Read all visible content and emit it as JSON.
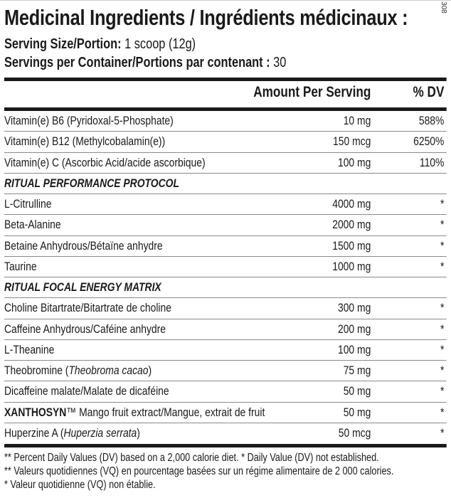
{
  "title": "Medicinal Ingredients / Ingrédients médicinaux :",
  "code": "308",
  "serving_size": {
    "label": "Serving Size/Portion:",
    "value": "1 scoop (12g)"
  },
  "servings_per_container": {
    "label": "Servings per Container/Portions par contenant :",
    "value": "30"
  },
  "header": {
    "amount": "Amount Per Serving",
    "dv": "% DV"
  },
  "rows": [
    {
      "name": "Vitamin(e) B6 (Pyridoxal-5-Phosphate)",
      "amount": "10 mg",
      "dv": "588%"
    },
    {
      "name": "Vitamin(e) B12 (Methylcobalamin(e))",
      "amount": "150 mcg",
      "dv": "6250%"
    },
    {
      "name": "Vitamin(e) C (Ascorbic Acid/acide ascorbique)",
      "amount": "100 mg",
      "dv": "110%"
    },
    {
      "section": "RITUAL PERFORMANCE PROTOCOL"
    },
    {
      "name": "L-Citrulline",
      "amount": "4000 mg",
      "dv": "*"
    },
    {
      "name": "Beta-Alanine",
      "amount": "2000 mg",
      "dv": "*"
    },
    {
      "name": "Betaine Anhydrous/Bétaïne anhydre",
      "amount": "1500 mg",
      "dv": "*"
    },
    {
      "name": "Taurine",
      "amount": "1000 mg",
      "dv": "*"
    },
    {
      "section": "RITUAL FOCAL ENERGY MATRIX"
    },
    {
      "name": "Choline Bitartrate/Bitartrate de choline",
      "amount": "300 mg",
      "dv": "*"
    },
    {
      "name": "Caffeine Anhydrous/Caféine anhydre",
      "amount": "200 mg",
      "dv": "*"
    },
    {
      "name": "L-Theanine",
      "amount": "100 mg",
      "dv": "*"
    },
    {
      "name": "Theobromine (",
      "italic": "Theobroma cacao",
      "name_end": ")",
      "amount": "75 mg",
      "dv": "*"
    },
    {
      "name": "Dicaffeine malate/Malate de dicaféine",
      "amount": "50 mg",
      "dv": "*"
    },
    {
      "bold": "XANTHOSYN",
      "name": "™ Mango fruit extract/Mangue, extrait de fruit",
      "amount": "50 mg",
      "dv": "*"
    },
    {
      "name": "Huperzine A (",
      "italic": "Huperzia serrata",
      "name_end": ")",
      "amount": "50 mcg",
      "dv": "*"
    }
  ],
  "footnotes": [
    "** Percent Daily Values (DV) based on a 2,000 calorie diet. * Daily Value (DV) not established.",
    "** Valeurs quotidiennes (VQ) en pourcentage basées sur un régime alimentaire de 2 000 calories.",
    "* Valeur quotidienne (VQ) non établie."
  ]
}
